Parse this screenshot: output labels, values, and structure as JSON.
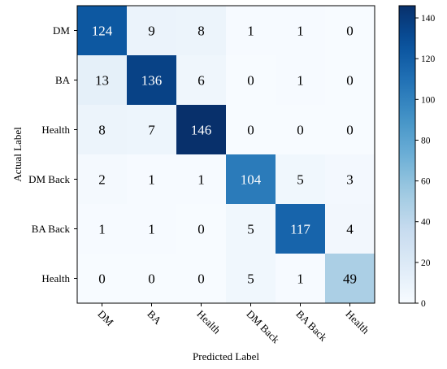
{
  "chart_data": {
    "type": "heatmap",
    "xlabel": "Predicted Label",
    "ylabel": "Actual Label",
    "x_categories": [
      "DM",
      "BA",
      "Health",
      "DM Back",
      "BA Back",
      "Health"
    ],
    "y_categories": [
      "DM",
      "BA",
      "Health",
      "DM Back",
      "BA Back",
      "Health"
    ],
    "values": [
      [
        124,
        9,
        8,
        1,
        1,
        0
      ],
      [
        13,
        136,
        6,
        0,
        1,
        0
      ],
      [
        8,
        7,
        146,
        0,
        0,
        0
      ],
      [
        2,
        1,
        1,
        104,
        5,
        3
      ],
      [
        1,
        1,
        0,
        5,
        117,
        4
      ],
      [
        0,
        0,
        0,
        5,
        1,
        49
      ]
    ],
    "colorbar": {
      "range": [
        0,
        146
      ],
      "ticks": [
        0,
        20,
        40,
        60,
        80,
        100,
        120,
        140
      ],
      "colormap": "Blues"
    },
    "x_tick_rotation": "-45 degrees"
  }
}
